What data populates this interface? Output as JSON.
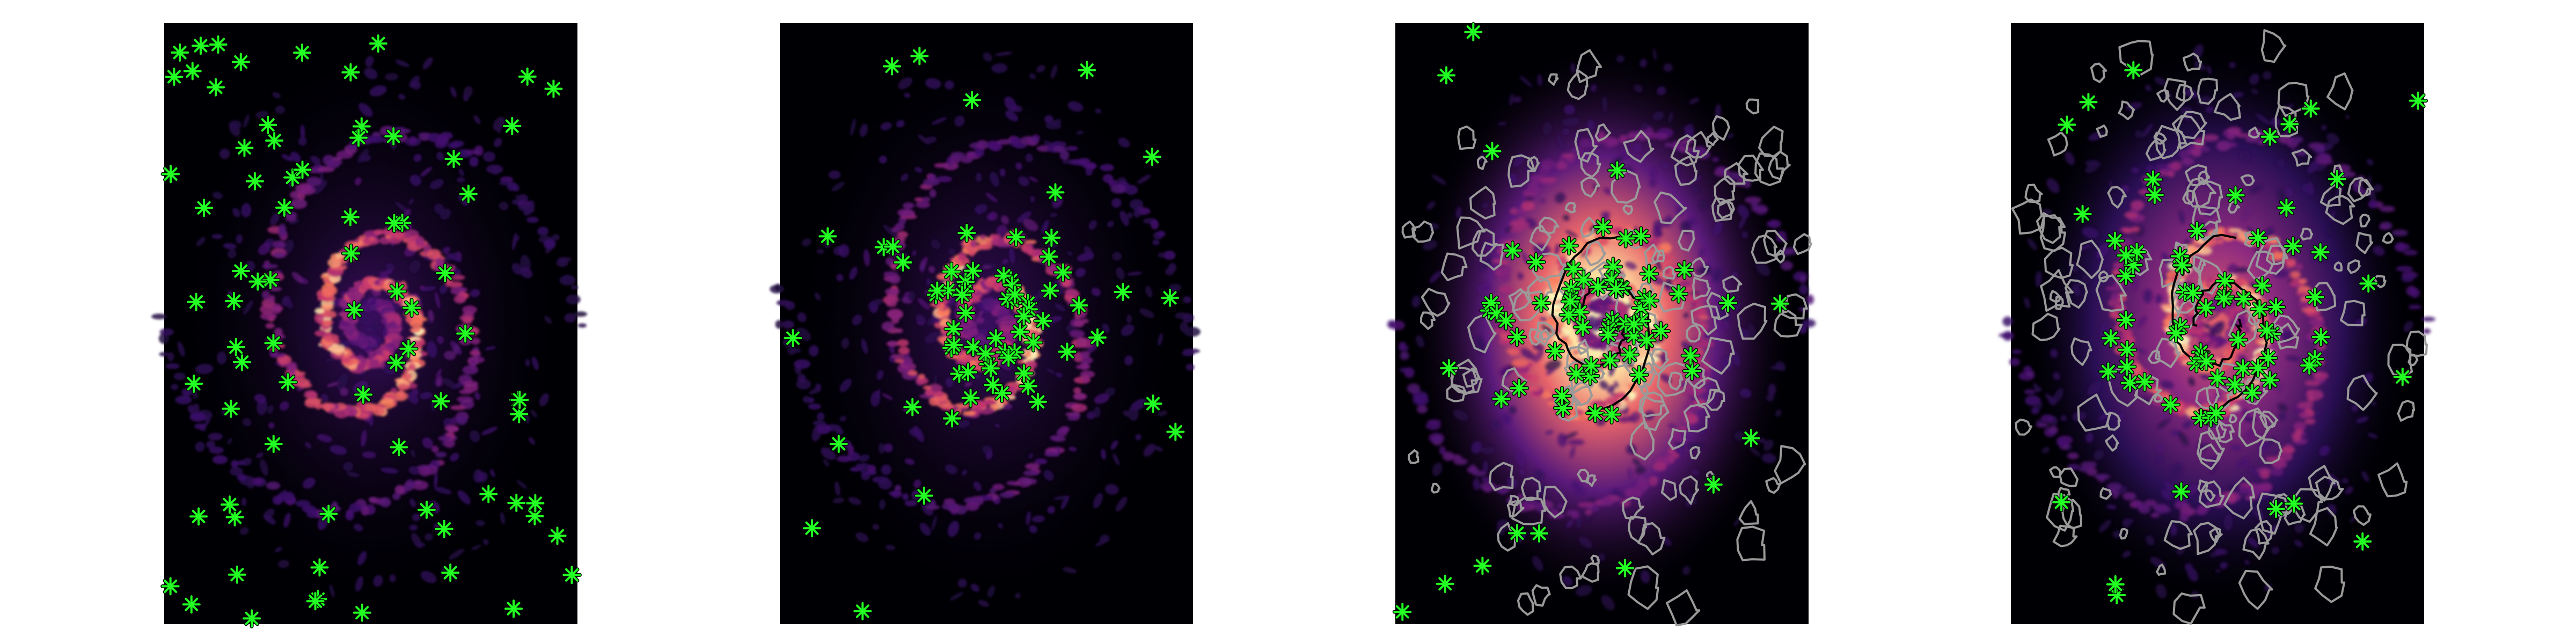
{
  "figure": {
    "panel_count": 4,
    "colormap": "magma",
    "marker_color": "#22ff22",
    "marker_edge_color": "#000000",
    "marker_symbol": "asterisk",
    "panels": [
      {
        "name": "panel-1",
        "content": "spiral-galaxy-map",
        "markers": true,
        "contours": false
      },
      {
        "name": "panel-2",
        "content": "spiral-galaxy-map",
        "markers": true,
        "contours": false
      },
      {
        "name": "panel-3",
        "content": "spiral-galaxy-map",
        "markers": true,
        "contours": true,
        "contour_colors": [
          "#9a9a9a",
          "#000000"
        ]
      },
      {
        "name": "panel-4",
        "content": "spiral-galaxy-map",
        "markers": true,
        "contours": true,
        "contour_colors": [
          "#9a9a9a",
          "#000000"
        ]
      }
    ]
  }
}
